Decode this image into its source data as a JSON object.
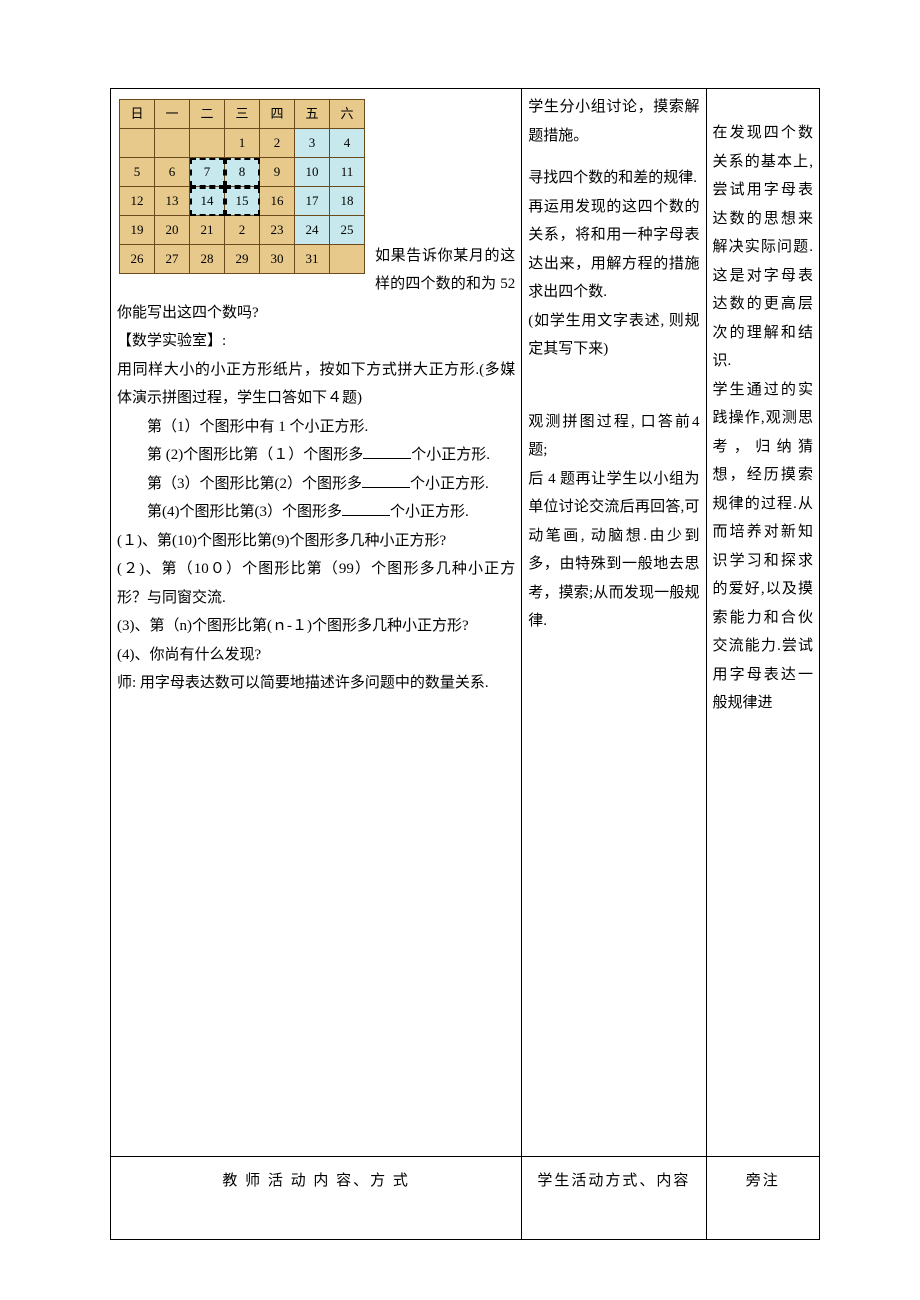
{
  "calendar": {
    "headers": [
      "日",
      "一",
      "二",
      "三",
      "四",
      "五",
      "六"
    ],
    "rows": [
      [
        {
          "v": "",
          "cls": "empty"
        },
        {
          "v": "",
          "cls": "empty"
        },
        {
          "v": "",
          "cls": "empty"
        },
        {
          "v": "1",
          "cls": "f"
        },
        {
          "v": "2",
          "cls": "f"
        },
        {
          "v": "3",
          "cls": "h"
        },
        {
          "v": "4",
          "cls": "h"
        }
      ],
      [
        {
          "v": "5",
          "cls": "f"
        },
        {
          "v": "6",
          "cls": "f"
        },
        {
          "v": "7",
          "cls": "h selbox"
        },
        {
          "v": "8",
          "cls": "h selbox"
        },
        {
          "v": "9",
          "cls": "f"
        },
        {
          "v": "10",
          "cls": "h"
        },
        {
          "v": "11",
          "cls": "h"
        }
      ],
      [
        {
          "v": "12",
          "cls": "f"
        },
        {
          "v": "13",
          "cls": "f"
        },
        {
          "v": "14",
          "cls": "h selbox"
        },
        {
          "v": "15",
          "cls": "h selbox"
        },
        {
          "v": "16",
          "cls": "f"
        },
        {
          "v": "17",
          "cls": "h"
        },
        {
          "v": "18",
          "cls": "h"
        }
      ],
      [
        {
          "v": "19",
          "cls": "f"
        },
        {
          "v": "20",
          "cls": "f"
        },
        {
          "v": "21",
          "cls": "f"
        },
        {
          "v": "2",
          "cls": "f"
        },
        {
          "v": "23",
          "cls": "f"
        },
        {
          "v": "24",
          "cls": "h"
        },
        {
          "v": "25",
          "cls": "h"
        }
      ],
      [
        {
          "v": "26",
          "cls": "f"
        },
        {
          "v": "27",
          "cls": "f"
        },
        {
          "v": "28",
          "cls": "f"
        },
        {
          "v": "29",
          "cls": "f"
        },
        {
          "v": "30",
          "cls": "f"
        },
        {
          "v": "31",
          "cls": "f"
        },
        {
          "v": "",
          "cls": "empty"
        }
      ]
    ]
  },
  "col1": {
    "lead": "如果告诉你某月的这样的四个数的和为 52 你能写出这四个数吗?",
    "lab_title": "【数学实验室】:",
    "lab_desc": "用同样大小的小正方形纸片，按如下方式拼大正方形.(多媒体演示拼图过程，学生口答如下４题)",
    "q1": "第（1）个图形中有 1 个小正方形.",
    "q2a": "第 (2)个图形比第（１）个图形多",
    "q2b": "个小正方形.",
    "q3a": "第（3）个图形比第(2）个图形多",
    "q3b": "个小正方形.",
    "q4a": "第(4)个图形比第(3）个图形多",
    "q4b": "个小正方形.",
    "p1": "(１)、第(10)个图形比第(9)个图形多几种小正方形?",
    "p2": "(２)、第（10０）个图形比第（99）个图形多几种小正方形？与同窗交流.",
    "p3": "(3)、第（n)个图形比第(ｎ-１)个图形多几种小正方形?",
    "p4": "(4)、你尚有什么发现?",
    "teacher": "师: 用字母表达数可以简要地描述许多问题中的数量关系."
  },
  "col2": {
    "t1": "学生分小组讨论，摸索解题措施。",
    "t2": "寻找四个数的和差的规律.",
    "t3": "再运用发现的这四个数的关系，将和用一种字母表达出来，用解方程的措施求出四个数.",
    "t4": "(如学生用文字表述, 则规定其写下来)",
    "t5": "观测拼图过程, 口答前4 题;",
    "t6": "后 4 题再让学生以小组为单位讨论交流后再回答,可动笔画, 动脑想.由少到多，由特殊到一般地去思考，摸索;从而发现一般规律."
  },
  "col3": {
    "t1": "在发现四个数关系的基本上,尝试用字母表达数的思想来解决实际问题.这是对字母表达数的更高层次的理解和结识.",
    "t2": "学生通过的实践操作,观测思考，归纳猜想，经历摸索规律的过程.从而培养对新知识学习和探求的爱好,以及摸索能力和合伙交流能力.尝试用字母表达一般规律进"
  },
  "footer": {
    "c1": "教 师 活 动    内    容、方 式",
    "c2": "学生活动方式、内容",
    "c3": "旁注"
  }
}
